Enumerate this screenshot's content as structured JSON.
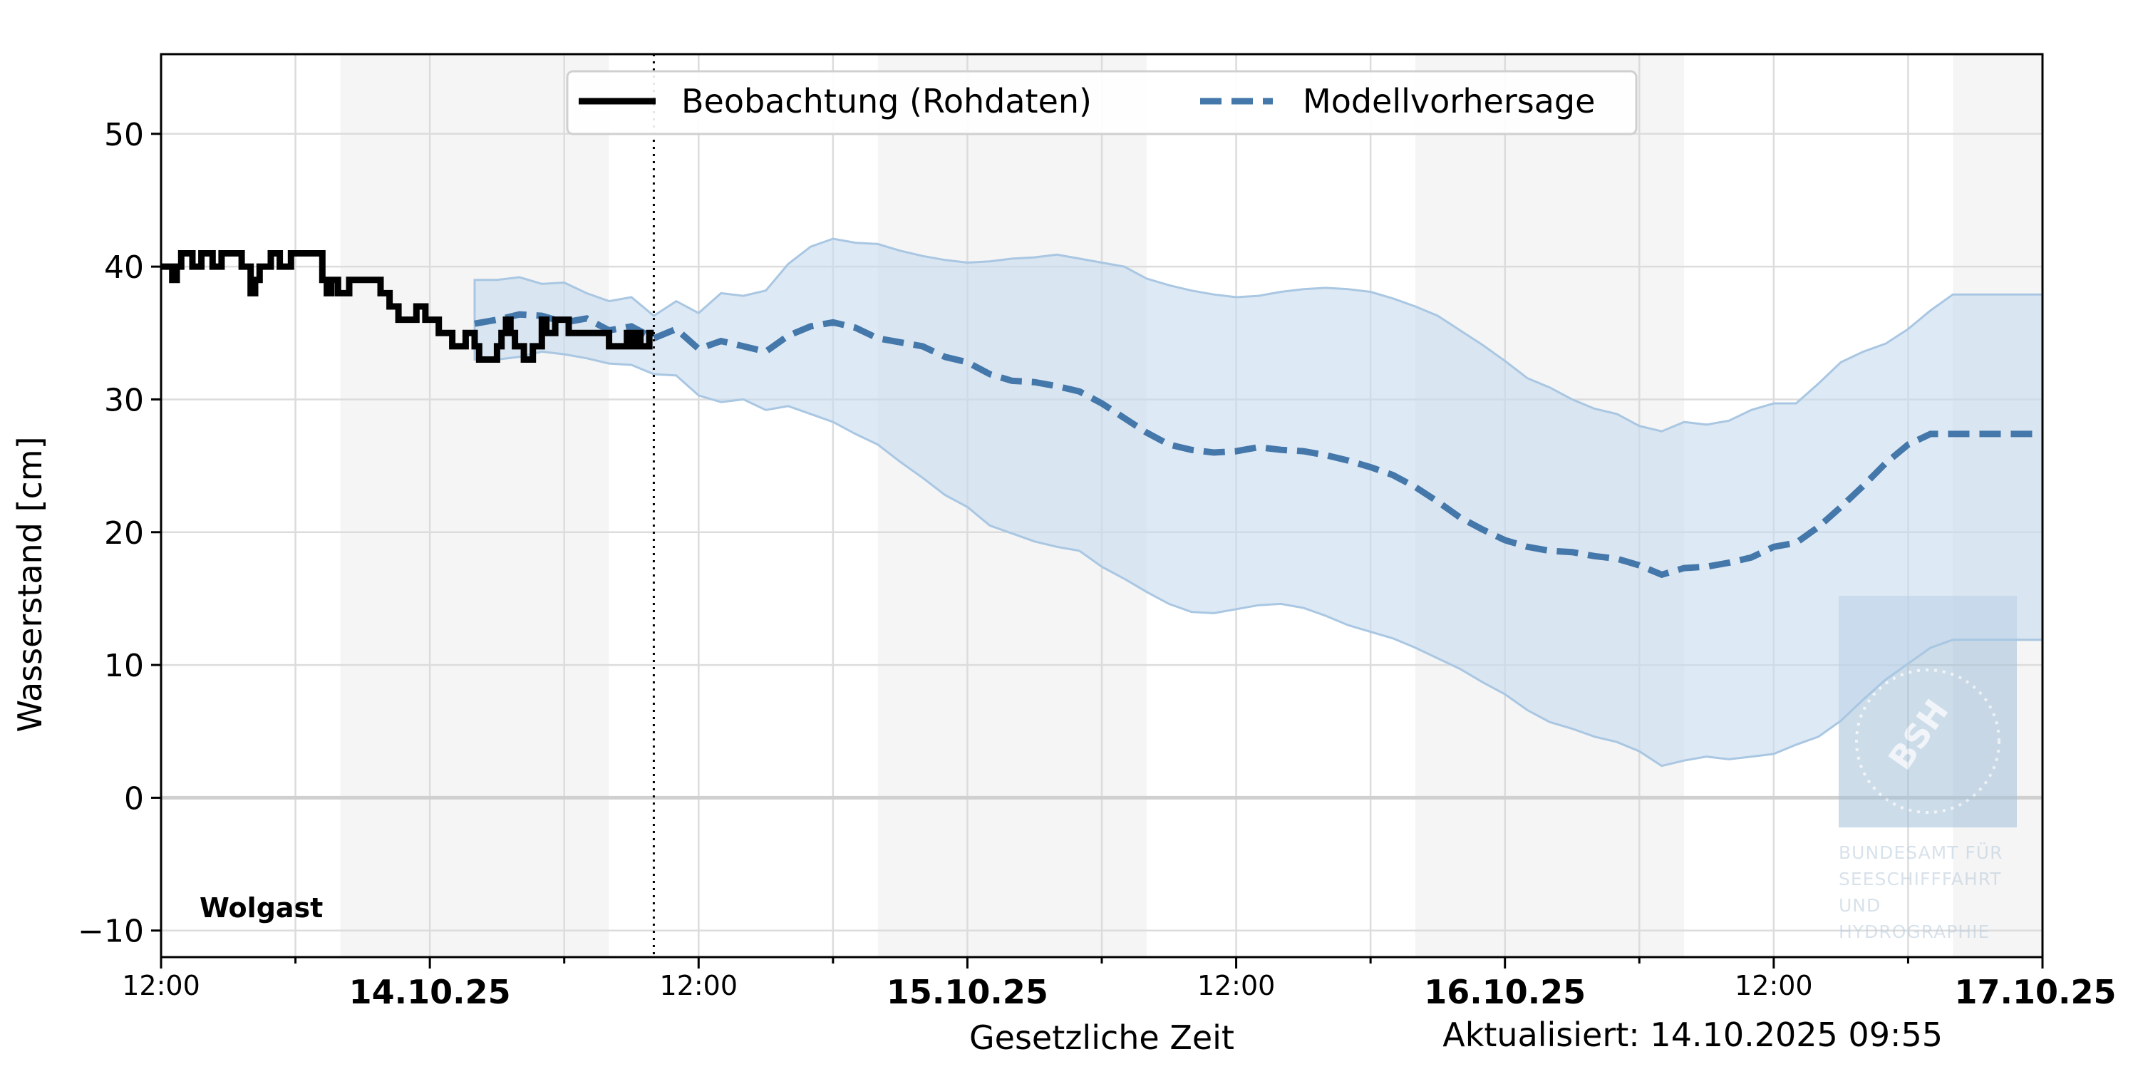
{
  "chart_data": {
    "type": "line",
    "title": "",
    "station": "Wolgast",
    "xlabel": "Gesetzliche Zeit",
    "ylabel": "Wasserstand [cm]",
    "updated": "Aktualisiert: 14.10.2025 09:55",
    "x_unit": "hours since 13.10.25 12:00",
    "xlim": [
      0,
      84
    ],
    "ylim": [
      -12,
      56
    ],
    "grid": true,
    "legend_position": "top-center",
    "now_marker_hour": 22,
    "y_ticks": [
      {
        "value": -10,
        "label": "−10"
      },
      {
        "value": 0,
        "label": "0"
      },
      {
        "value": 10,
        "label": "10"
      },
      {
        "value": 20,
        "label": "20"
      },
      {
        "value": 30,
        "label": "30"
      },
      {
        "value": 40,
        "label": "40"
      },
      {
        "value": 50,
        "label": "50"
      }
    ],
    "x_ticks": [
      {
        "hour": 0,
        "label": "12:00",
        "major": false
      },
      {
        "hour": 12,
        "label": "14.10.25",
        "major": true
      },
      {
        "hour": 24,
        "label": "12:00",
        "major": false
      },
      {
        "hour": 36,
        "label": "15.10.25",
        "major": true
      },
      {
        "hour": 48,
        "label": "12:00",
        "major": false
      },
      {
        "hour": 60,
        "label": "16.10.25",
        "major": true
      },
      {
        "hour": 72,
        "label": "12:00",
        "major": false
      },
      {
        "hour": 84,
        "label": "17.10.25",
        "major": true
      }
    ],
    "night_bands": [
      [
        8,
        20
      ],
      [
        32,
        44
      ],
      [
        56,
        68
      ],
      [
        80,
        84
      ]
    ],
    "series": [
      {
        "name": "Beobachtung (Rohdaten)",
        "style": "solid-step",
        "color": "#000000",
        "x": [
          0,
          0.5,
          0.7,
          0.9,
          1.4,
          1.8,
          2.3,
          2.7,
          3.6,
          4.0,
          4.2,
          4.4,
          4.9,
          5.3,
          5.8,
          7.2,
          7.4,
          7.6,
          7.9,
          8.4,
          9.8,
          10.2,
          10.6,
          11.4,
          11.8,
          12.4,
          13.0,
          13.6,
          14.0,
          14.2,
          14.6,
          15.0,
          15.2,
          15.4,
          15.6,
          15.8,
          16.2,
          16.6,
          17.0,
          17.2,
          17.6,
          18.2,
          18.6,
          19.0,
          19.4,
          20.0,
          20.8,
          21.0,
          21.2,
          21.4,
          21.8
        ],
        "y": [
          40,
          39,
          40,
          41,
          40,
          41,
          40,
          41,
          40,
          38,
          39,
          40,
          41,
          40,
          41,
          39,
          38,
          39,
          38,
          39,
          38,
          37,
          36,
          37,
          36,
          35,
          34,
          35,
          34,
          33,
          33,
          34,
          35,
          36,
          35,
          34,
          33,
          34,
          36,
          35,
          36,
          35,
          35,
          35,
          35,
          34,
          35,
          34,
          35,
          34,
          35
        ]
      },
      {
        "name": "Modellvorhersage",
        "style": "dashed",
        "color": "#4477aa",
        "x": [
          14,
          15,
          16,
          17,
          18,
          19,
          20,
          21,
          22,
          23,
          24,
          25,
          26,
          27,
          28,
          29,
          30,
          31,
          32,
          33,
          34,
          35,
          36,
          37,
          38,
          39,
          40,
          41,
          42,
          43,
          44,
          45,
          46,
          47,
          48,
          49,
          50,
          51,
          52,
          53,
          54,
          55,
          56,
          57,
          58,
          59,
          60,
          61,
          62,
          63,
          64,
          65,
          66,
          67,
          68,
          69,
          70,
          71,
          72,
          73,
          74,
          75,
          76,
          77,
          78,
          79,
          80,
          81,
          82,
          83,
          84
        ],
        "y": [
          35.7,
          36,
          36.4,
          36.3,
          35.8,
          36.1,
          35.2,
          35.5,
          34.6,
          35.3,
          33.8,
          34.4,
          34.0,
          33.6,
          34.8,
          35.5,
          35.8,
          35.4,
          34.6,
          34.3,
          34.0,
          33.2,
          32.8,
          31.9,
          31.4,
          31.3,
          31.0,
          30.6,
          29.7,
          28.6,
          27.5,
          26.6,
          26.2,
          26.0,
          26.1,
          26.4,
          26.2,
          26.1,
          25.8,
          25.4,
          24.9,
          24.3,
          23.4,
          22.3,
          21.1,
          20.2,
          19.4,
          18.9,
          18.6,
          18.5,
          18.2,
          18.0,
          17.5,
          16.8,
          17.3,
          17.4,
          17.7,
          18.1,
          18.9,
          19.2,
          20.4,
          21.9,
          23.5,
          25.2,
          26.6,
          27.4,
          27.4,
          27.4,
          27.4,
          27.4,
          27.4
        ]
      },
      {
        "name": "",
        "style": "band",
        "color": "#c6dbef",
        "x": [
          14,
          15,
          16,
          17,
          18,
          19,
          20,
          21,
          22,
          23,
          24,
          25,
          26,
          27,
          28,
          29,
          30,
          31,
          32,
          33,
          34,
          35,
          36,
          37,
          38,
          39,
          40,
          41,
          42,
          43,
          44,
          45,
          46,
          47,
          48,
          49,
          50,
          51,
          52,
          53,
          54,
          55,
          56,
          57,
          58,
          59,
          60,
          61,
          62,
          63,
          64,
          65,
          66,
          67,
          68,
          69,
          70,
          71,
          72,
          73,
          74,
          75,
          76,
          77,
          78,
          79,
          80,
          81,
          82,
          83,
          84
        ],
        "upper": [
          39,
          39,
          39.2,
          38.7,
          38.8,
          38.0,
          37.4,
          37.7,
          36.3,
          37.4,
          36.5,
          38.0,
          37.8,
          38.2,
          40.2,
          41.5,
          42.1,
          41.8,
          41.7,
          41.2,
          40.8,
          40.5,
          40.3,
          40.4,
          40.6,
          40.7,
          40.9,
          40.6,
          40.3,
          40.0,
          39.1,
          38.6,
          38.2,
          37.9,
          37.7,
          37.8,
          38.1,
          38.3,
          38.4,
          38.3,
          38.1,
          37.6,
          37.0,
          36.3,
          35.2,
          34.1,
          32.9,
          31.6,
          30.9,
          30.0,
          29.3,
          28.9,
          28.0,
          27.6,
          28.3,
          28.1,
          28.4,
          29.2,
          29.7,
          29.7,
          31.2,
          32.8,
          33.6,
          34.2,
          35.3,
          36.7,
          37.9,
          37.9,
          37.9,
          37.9,
          37.9
        ],
        "lower": [
          33,
          33,
          33.2,
          33.6,
          33.4,
          33.1,
          32.7,
          32.6,
          31.9,
          31.8,
          30.3,
          29.8,
          30.0,
          29.2,
          29.5,
          28.9,
          28.3,
          27.4,
          26.6,
          25.3,
          24.1,
          22.8,
          21.9,
          20.5,
          19.9,
          19.3,
          18.9,
          18.6,
          17.4,
          16.5,
          15.5,
          14.6,
          14.0,
          13.9,
          14.2,
          14.5,
          14.6,
          14.3,
          13.7,
          13.0,
          12.5,
          12.0,
          11.3,
          10.5,
          9.7,
          8.7,
          7.8,
          6.6,
          5.7,
          5.2,
          4.6,
          4.2,
          3.5,
          2.4,
          2.8,
          3.1,
          2.9,
          3.1,
          3.3,
          4.0,
          4.6,
          5.8,
          7.4,
          8.9,
          10.1,
          11.3,
          11.9,
          11.9,
          11.9,
          11.9,
          11.9
        ]
      }
    ]
  },
  "logo": {
    "name": "bsh-logo",
    "lines": [
      "BUNDESAMT FÜR",
      "SEESCHIFFFAHRT",
      "UND",
      "HYDROGRAPHIE"
    ]
  }
}
